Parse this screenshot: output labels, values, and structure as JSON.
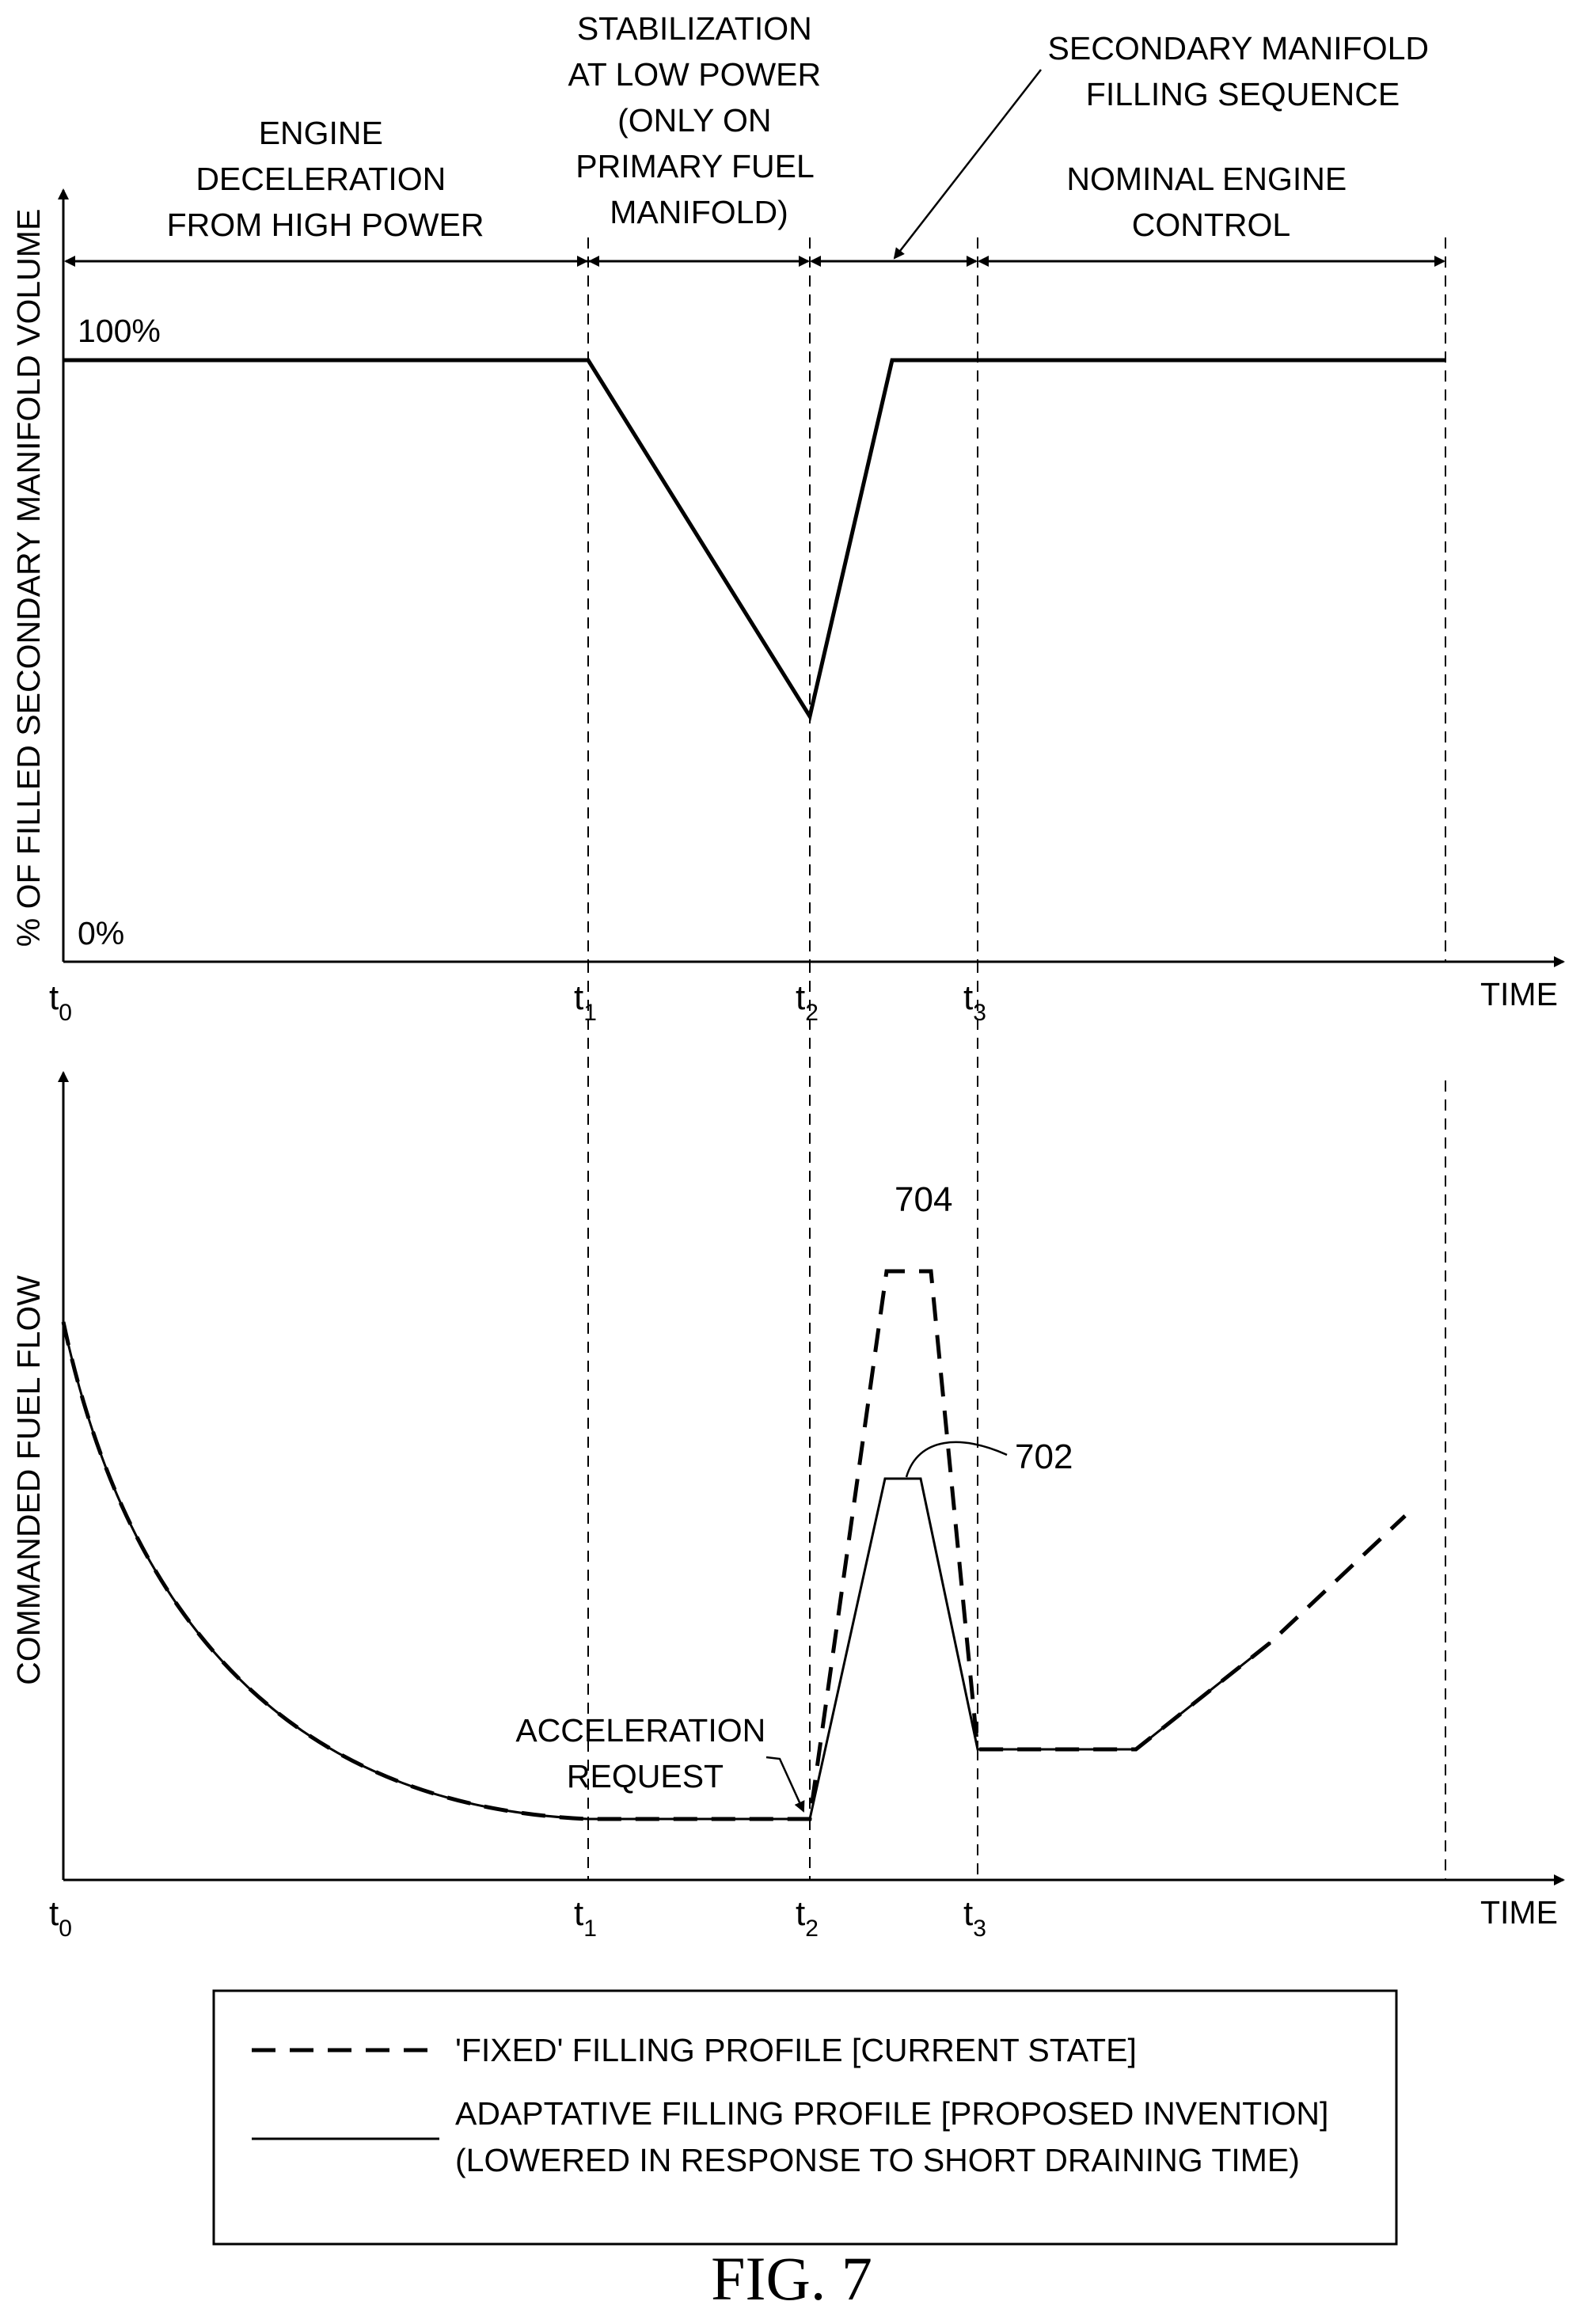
{
  "figure": {
    "caption": "FIG. 7"
  },
  "top_chart": {
    "y_axis_label": "% OF FILLED SECONDARY MANIFOLD VOLUME",
    "x_axis_label": "TIME",
    "y_100_label": "100%",
    "y_0_label": "0%",
    "phases": [
      {
        "lines": [
          "ENGINE",
          "DECELERATION",
          "FROM HIGH POWER"
        ]
      },
      {
        "lines": [
          "STABILIZATION",
          "AT LOW POWER",
          "(ONLY ON",
          "PRIMARY FUEL",
          "MANIFOLD)"
        ]
      },
      {
        "lines": [
          "SECONDARY MANIFOLD",
          "FILLING SEQUENCE"
        ]
      },
      {
        "lines": [
          "NOMINAL ENGINE",
          "CONTROL"
        ]
      }
    ]
  },
  "bottom_chart": {
    "y_axis_label": "COMMANDED FUEL FLOW",
    "x_axis_label": "TIME",
    "acceleration_request": [
      "ACCELERATION",
      "REQUEST"
    ],
    "ref_704": "704",
    "ref_702": "702"
  },
  "time_ticks": [
    {
      "base": "t",
      "sub": "0"
    },
    {
      "base": "t",
      "sub": "1"
    },
    {
      "base": "t",
      "sub": "2"
    },
    {
      "base": "t",
      "sub": "3"
    }
  ],
  "legend": {
    "fixed": "'FIXED' FILLING PROFILE [CURRENT STATE]",
    "adaptive_line1": "ADAPTATIVE FILLING PROFILE [PROPOSED INVENTION]",
    "adaptive_line2": "(LOWERED IN RESPONSE TO SHORT DRAINING TIME)"
  },
  "colors": {
    "ink": "#000000",
    "background": "#ffffff"
  }
}
